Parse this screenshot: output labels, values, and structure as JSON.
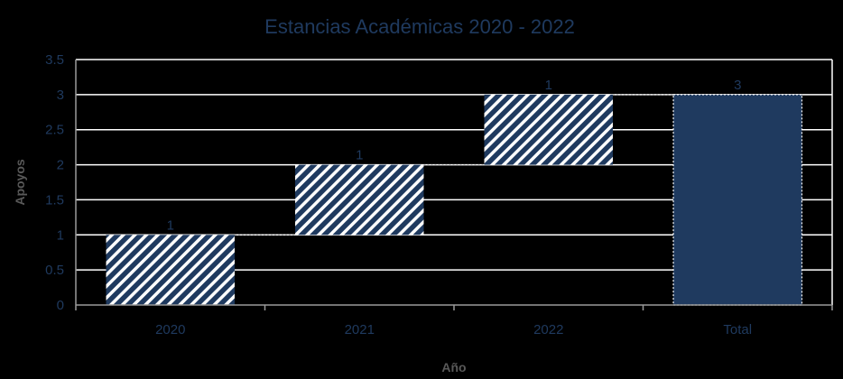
{
  "chart_data": {
    "type": "bar",
    "subtype": "waterfall",
    "title": "Estancias Académicas 2020 - 2022",
    "xlabel": "Año",
    "ylabel": "Apoyos",
    "categories": [
      "2020",
      "2021",
      "2022",
      "Total"
    ],
    "values": [
      1,
      1,
      1,
      3
    ],
    "data_labels": [
      "1",
      "1",
      "1",
      "3"
    ],
    "ylim": [
      0,
      3.5
    ],
    "yticks": [
      "0",
      "0.5",
      "1",
      "1.5",
      "2",
      "2.5",
      "3",
      "3.5"
    ],
    "grid": true,
    "legend": "none",
    "colors": {
      "increment_fill": "#1f3a5f",
      "increment_hatch": "#ffffff",
      "total_fill": "#1f3a5f",
      "gridline": "#ffffff",
      "text": "#1f3a5f"
    }
  }
}
